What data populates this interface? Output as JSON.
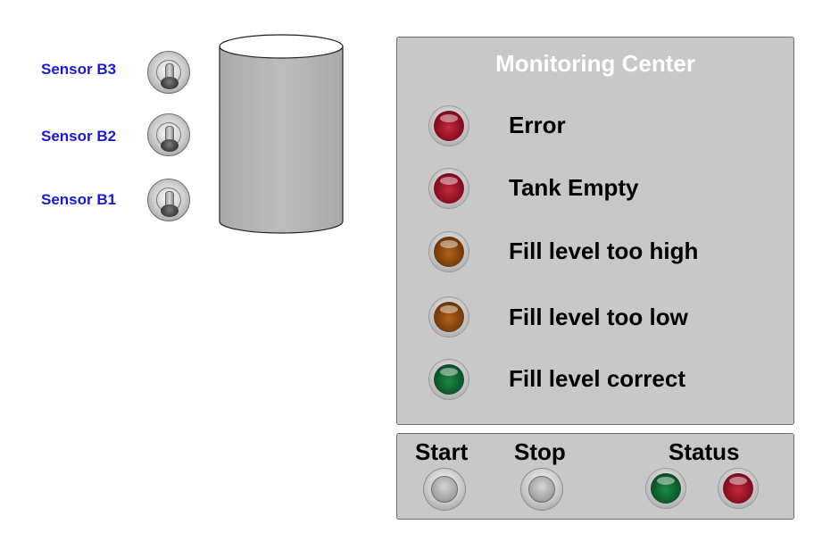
{
  "sensors": [
    {
      "label": "Sensor B3"
    },
    {
      "label": "Sensor B2"
    },
    {
      "label": "Sensor B1"
    }
  ],
  "monitoring": {
    "title": "Monitoring Center",
    "indicators": [
      {
        "label": "Error",
        "color": "#8c1022"
      },
      {
        "label": "Tank Empty",
        "color": "#8c1022"
      },
      {
        "label": "Fill level too high",
        "color": "#7c3f0c"
      },
      {
        "label": "Fill level too low",
        "color": "#7c3f0c"
      },
      {
        "label": "Fill level correct",
        "color": "#0e5a2c"
      }
    ]
  },
  "controls": {
    "start_label": "Start",
    "stop_label": "Stop",
    "status_label": "Status",
    "status_lamps": [
      {
        "color": "#0e5a2c"
      },
      {
        "color": "#8c1022"
      }
    ]
  },
  "colors": {
    "sensor_label": "#1a1ad6",
    "panel_bg": "#c8c8c8",
    "panel_title": "#ffffff",
    "tank_body": "#b4b4b4"
  }
}
